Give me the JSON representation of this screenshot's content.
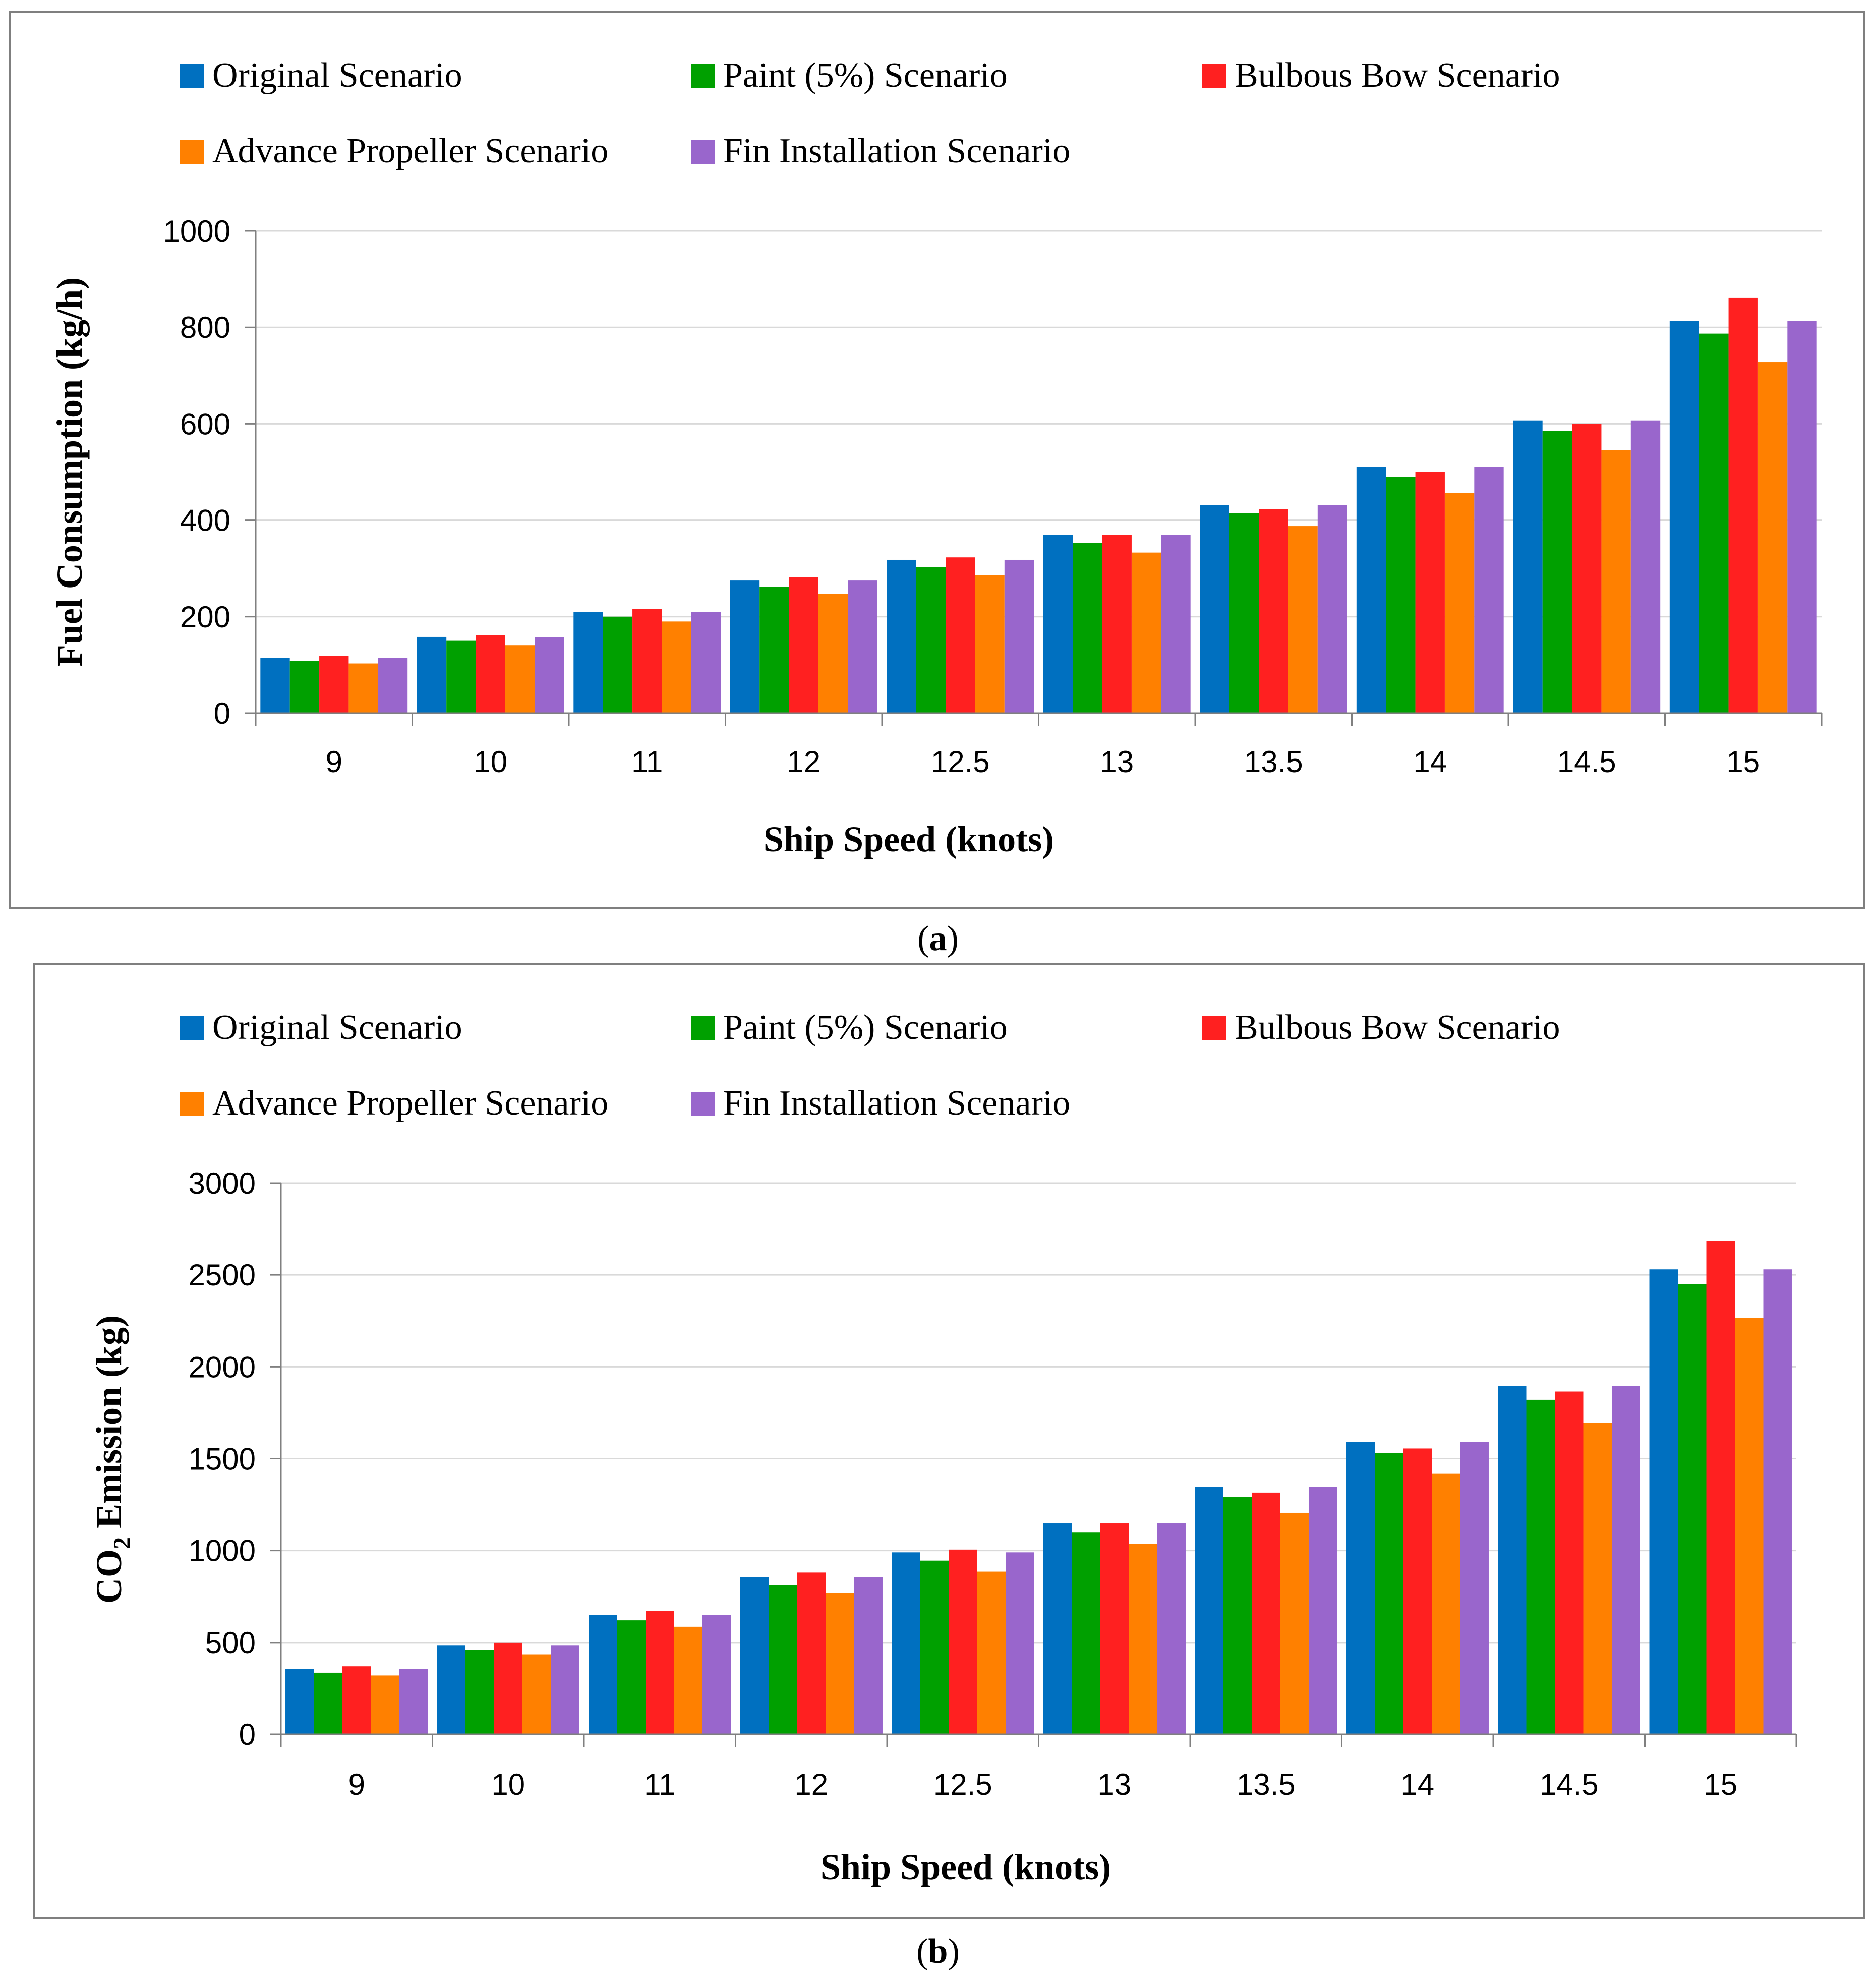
{
  "colors": {
    "original": "#0070c0",
    "paint": "#00a000",
    "bulbous": "#ff2020",
    "propeller": "#ff8000",
    "fin": "#9966cc",
    "grid": "#d9d9d9",
    "axis": "#808080"
  },
  "captions": {
    "a_open": "(",
    "a_letter": "a",
    "a_close": ")",
    "b_open": "(",
    "b_letter": "b",
    "b_close": ")"
  },
  "chart_data": [
    {
      "type": "bar",
      "panel": "a",
      "title": "",
      "xlabel": "Ship Speed (knots)",
      "ylabel": "Fuel Consumption (kg/h)",
      "ylim": [
        0,
        1000
      ],
      "yticks": [
        "0",
        "200",
        "400",
        "600",
        "800",
        "1000"
      ],
      "grid": true,
      "legend_position": "top",
      "categories": [
        "9",
        "10",
        "11",
        "12",
        "12.5",
        "13",
        "13.5",
        "14",
        "14.5",
        "15"
      ],
      "series": [
        {
          "name": "Original Scenario",
          "color_key": "original",
          "values": [
            115,
            158,
            210,
            275,
            318,
            370,
            432,
            510,
            607,
            813
          ]
        },
        {
          "name": "Paint (5%) Scenario",
          "color_key": "paint",
          "values": [
            108,
            150,
            200,
            262,
            303,
            353,
            415,
            490,
            585,
            787
          ]
        },
        {
          "name": "Bulbous Bow Scenario",
          "color_key": "bulbous",
          "values": [
            119,
            162,
            216,
            282,
            323,
            370,
            423,
            500,
            600,
            862
          ]
        },
        {
          "name": "Advance Propeller Scenario",
          "color_key": "propeller",
          "values": [
            103,
            141,
            190,
            247,
            286,
            333,
            388,
            457,
            545,
            728
          ]
        },
        {
          "name": "Fin Installation Scenario",
          "color_key": "fin",
          "values": [
            115,
            157,
            210,
            275,
            318,
            370,
            432,
            510,
            607,
            813
          ]
        }
      ]
    },
    {
      "type": "bar",
      "panel": "b",
      "title": "",
      "xlabel": "Ship Speed (knots)",
      "ylabel_main": "CO",
      "ylabel_sub": "2",
      "ylabel_rest": " Emission (kg)",
      "ylim": [
        0,
        3000
      ],
      "yticks": [
        "0",
        "500",
        "1000",
        "1500",
        "2000",
        "2500",
        "3000"
      ],
      "grid": true,
      "legend_position": "top",
      "categories": [
        "9",
        "10",
        "11",
        "12",
        "12.5",
        "13",
        "13.5",
        "14",
        "14.5",
        "15"
      ],
      "series": [
        {
          "name": "Original Scenario",
          "color_key": "original",
          "values": [
            355,
            485,
            650,
            855,
            990,
            1150,
            1345,
            1590,
            1895,
            2530
          ]
        },
        {
          "name": "Paint (5%) Scenario",
          "color_key": "paint",
          "values": [
            335,
            460,
            620,
            815,
            945,
            1100,
            1290,
            1530,
            1820,
            2450
          ]
        },
        {
          "name": "Bulbous Bow Scenario",
          "color_key": "bulbous",
          "values": [
            370,
            500,
            670,
            880,
            1005,
            1150,
            1315,
            1555,
            1865,
            2685
          ]
        },
        {
          "name": "Advance Propeller Scenario",
          "color_key": "propeller",
          "values": [
            320,
            435,
            585,
            770,
            885,
            1035,
            1205,
            1420,
            1695,
            2265
          ]
        },
        {
          "name": "Fin Installation Scenario",
          "color_key": "fin",
          "values": [
            355,
            485,
            650,
            855,
            990,
            1150,
            1345,
            1590,
            1895,
            2530
          ]
        }
      ]
    }
  ]
}
